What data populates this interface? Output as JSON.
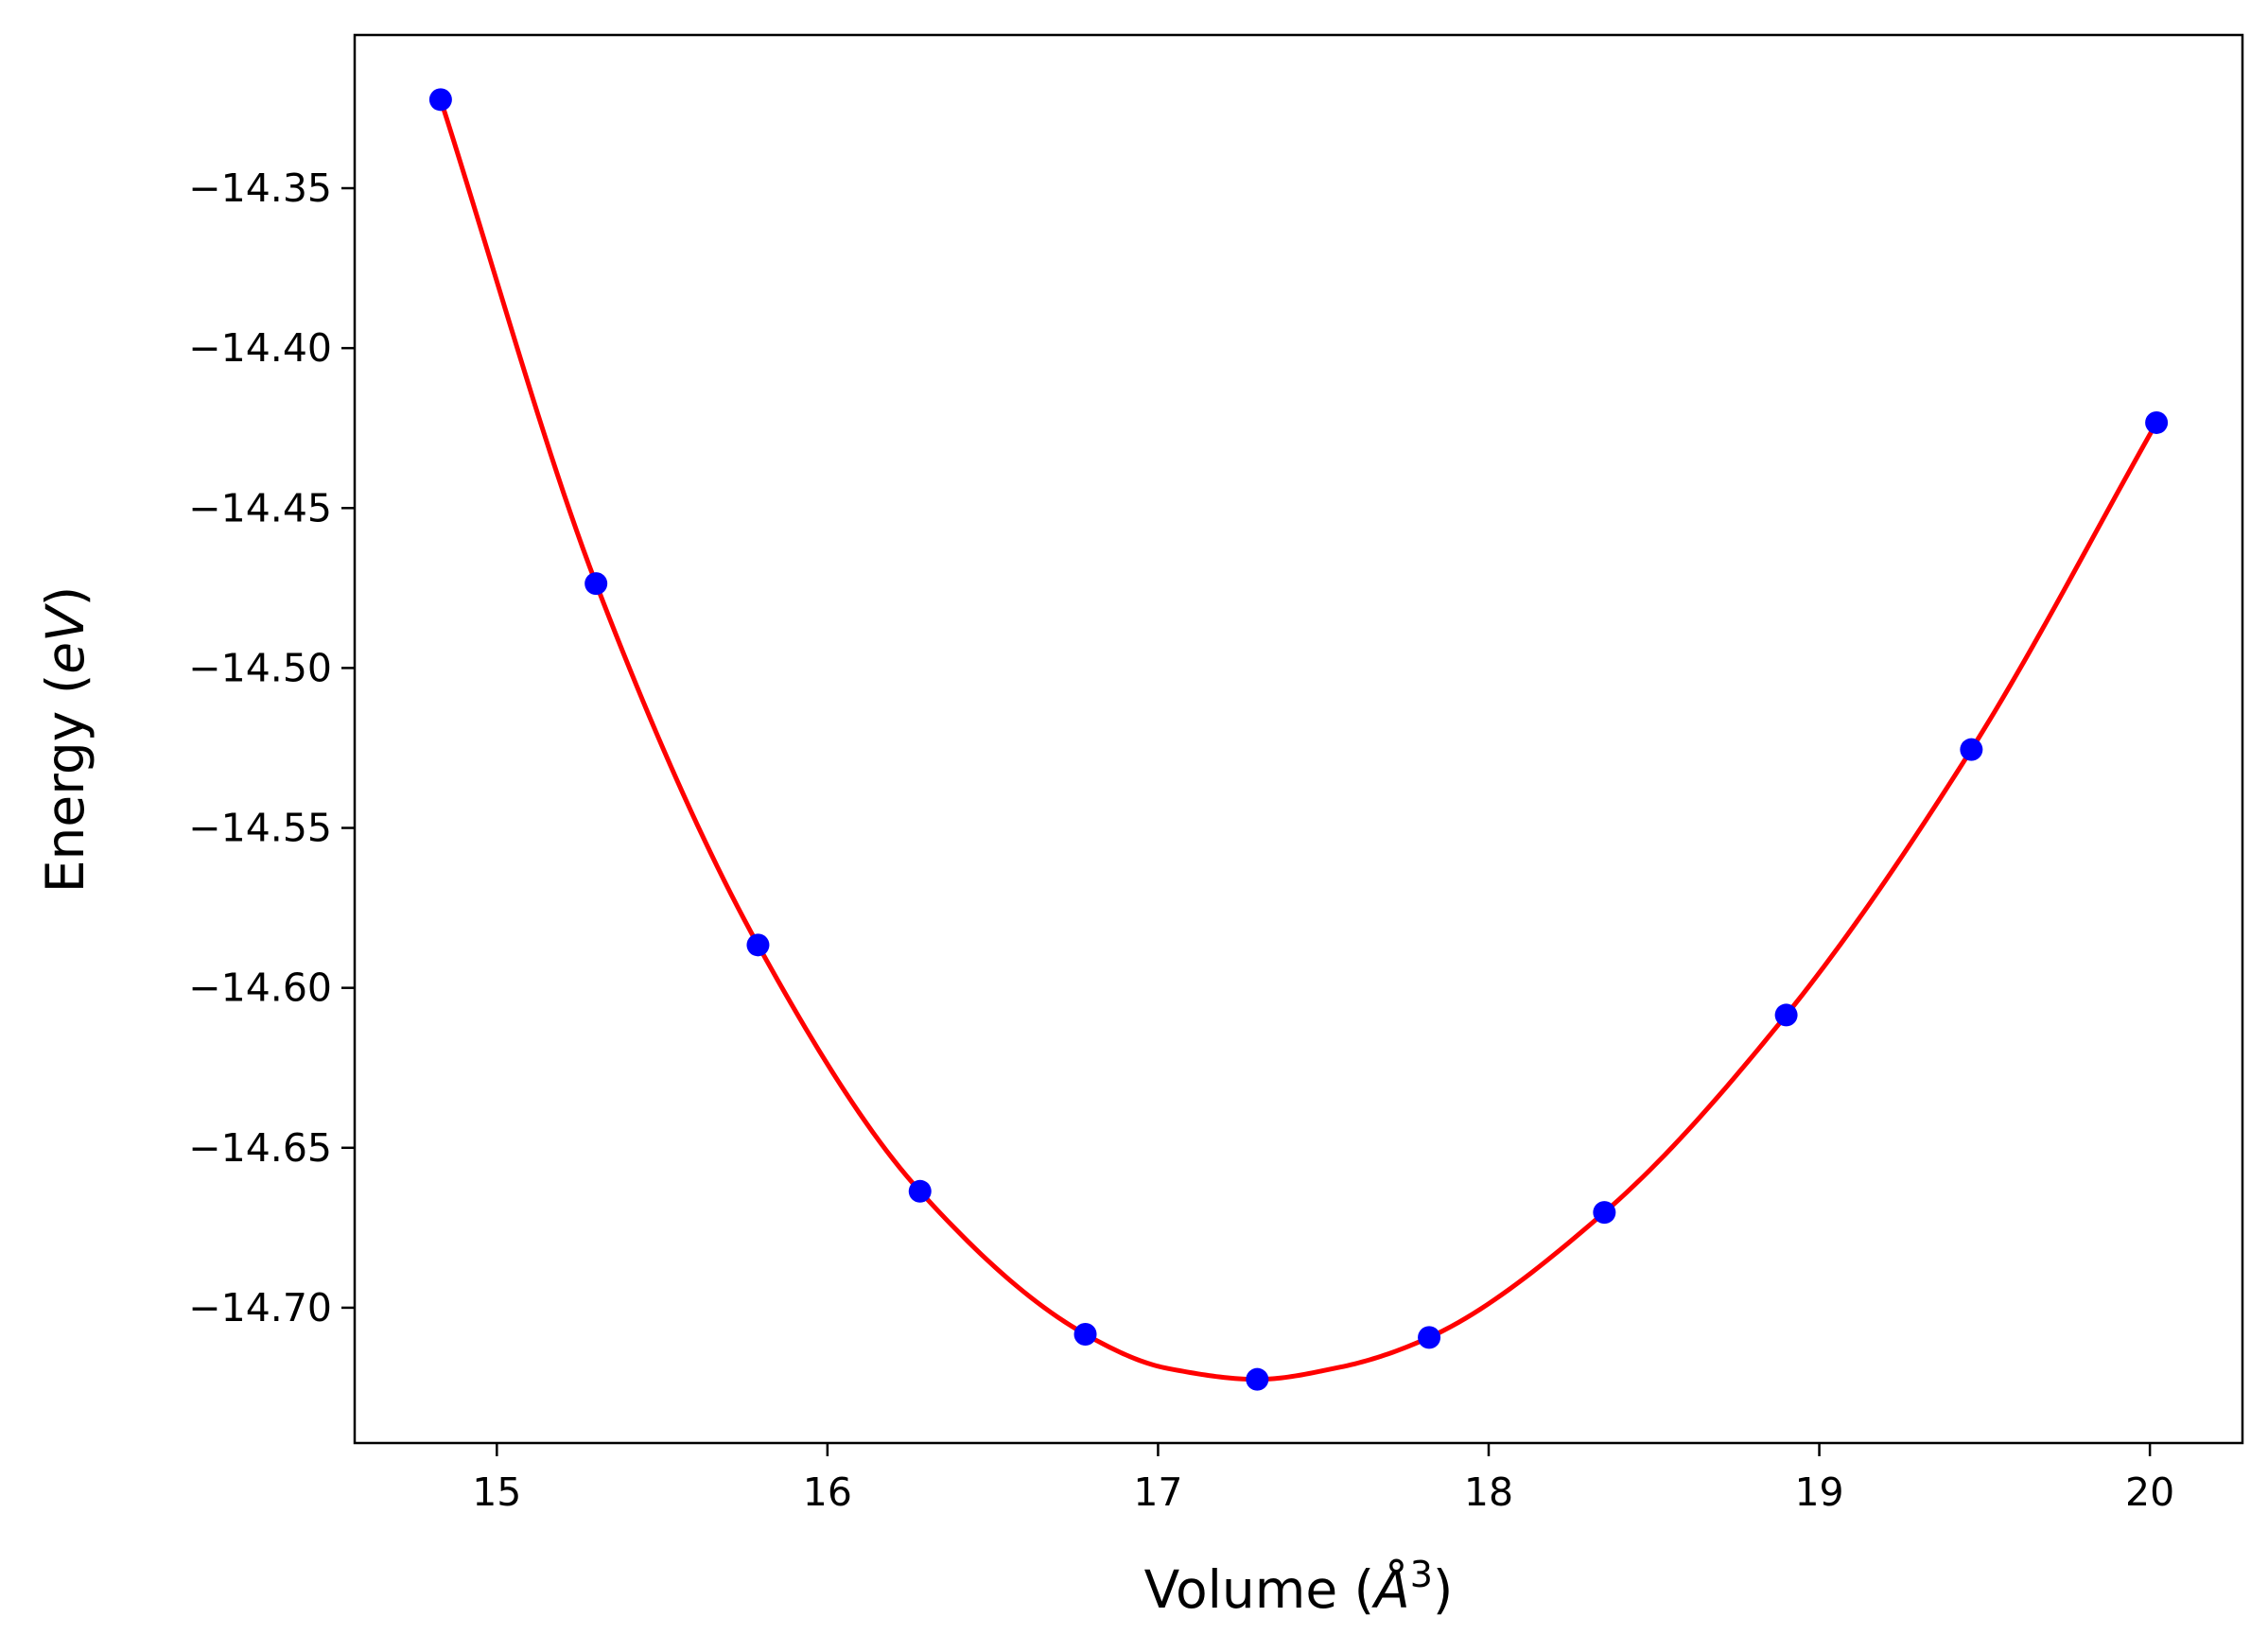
{
  "chart_data": {
    "type": "line",
    "xlabel": {
      "prefix": "Volume (",
      "italic": "Å",
      "sup": "3",
      "suffix": ")"
    },
    "ylabel": {
      "prefix": "Energy (",
      "italic": "eV",
      "suffix": ")"
    },
    "xlim": [
      14.57,
      20.28
    ],
    "ylim": [
      -14.7423,
      -14.3021
    ],
    "xticks": [
      15,
      16,
      17,
      18,
      19,
      20
    ],
    "xtick_labels": [
      "15",
      "16",
      "17",
      "18",
      "19",
      "20"
    ],
    "yticks": [
      -14.35,
      -14.4,
      -14.45,
      -14.5,
      -14.55,
      -14.6,
      -14.65,
      -14.7
    ],
    "ytick_labels": [
      "−14.35",
      "−14.40",
      "−14.45",
      "−14.50",
      "−14.55",
      "−14.60",
      "−14.65",
      "−14.70"
    ],
    "grid": false,
    "series": [
      {
        "kind": "points",
        "color": "#0000ff",
        "x": [
          14.83,
          15.3,
          15.79,
          16.28,
          16.78,
          17.3,
          17.82,
          18.35,
          18.9,
          19.46,
          20.02
        ],
        "y": [
          -14.3223,
          -14.4736,
          -14.5866,
          -14.6636,
          -14.7083,
          -14.7224,
          -14.7093,
          -14.6702,
          -14.6085,
          -14.5255,
          -14.4233
        ]
      },
      {
        "kind": "fit-curve",
        "color": "#ff0000",
        "x": [
          14.83,
          15.3,
          15.79,
          16.28,
          16.78,
          17.03,
          17.3,
          17.55,
          17.82,
          18.35,
          18.9,
          19.46,
          20.02
        ],
        "y": [
          -14.3223,
          -14.4736,
          -14.5866,
          -14.6636,
          -14.7083,
          -14.719,
          -14.7224,
          -14.7186,
          -14.7093,
          -14.6702,
          -14.6085,
          -14.5255,
          -14.4233
        ]
      }
    ]
  }
}
